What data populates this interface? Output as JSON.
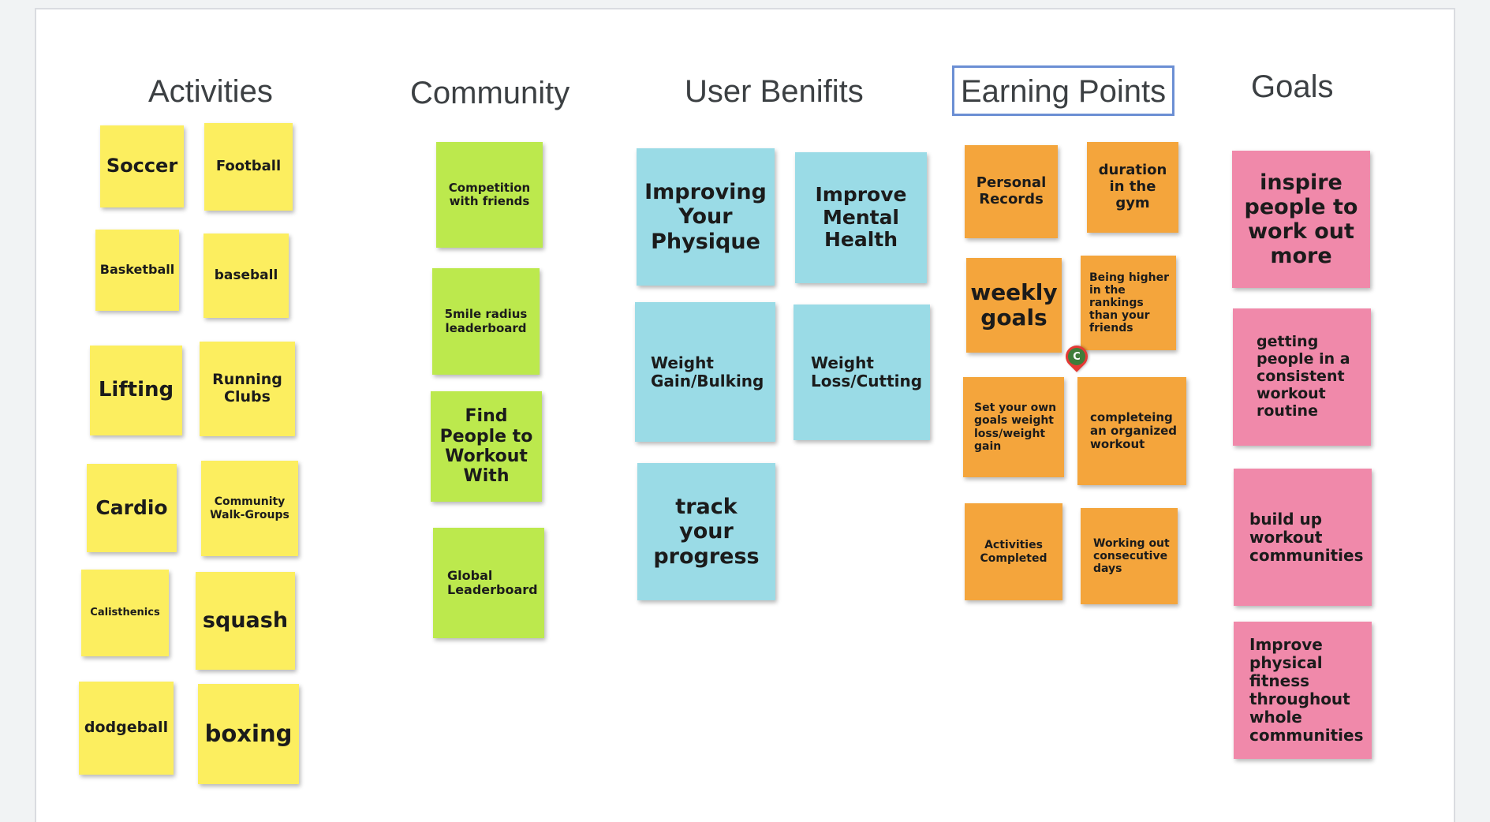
{
  "headings": {
    "activities": "Activities",
    "community": "Community",
    "user_benefits": "User Benifits",
    "earning_points": "Earning Points",
    "goals": "Goals"
  },
  "activities": [
    "Soccer",
    "Football",
    "Basketball",
    "baseball",
    "Lifting",
    "Running Clubs",
    "Cardio",
    "Community Walk-Groups",
    "Calisthenics",
    "squash",
    "dodgeball",
    "boxing"
  ],
  "community": [
    "Competition with friends",
    "5mile radius leaderboard",
    "Find People to Workout With",
    "Global Leaderboard"
  ],
  "user_benefits": [
    "Improving Your Physique",
    "Improve Mental Health",
    "Weight Gain/Bulking",
    "Weight Loss/Cutting",
    "track your progress"
  ],
  "earning_points": [
    "Personal Records",
    "duration in the gym",
    "weekly goals",
    "Being higher in the rankings than your friends",
    "Set your own goals weight loss/weight gain",
    "completeing an organized workout",
    "Activities Completed",
    "Working out consecutive days"
  ],
  "goals": [
    "inspire people to work out more",
    "getting people in a consistent workout routine",
    "build up workout communities",
    "Improve physical fitness throughout whole communities"
  ],
  "cursor": {
    "initial": "C",
    "color": "#3e7d3a"
  },
  "colors": {
    "yellow": "#fcee5f",
    "green": "#bce94d",
    "blue": "#9adbe6",
    "orange": "#f4a53c",
    "pink": "#f089aa"
  }
}
